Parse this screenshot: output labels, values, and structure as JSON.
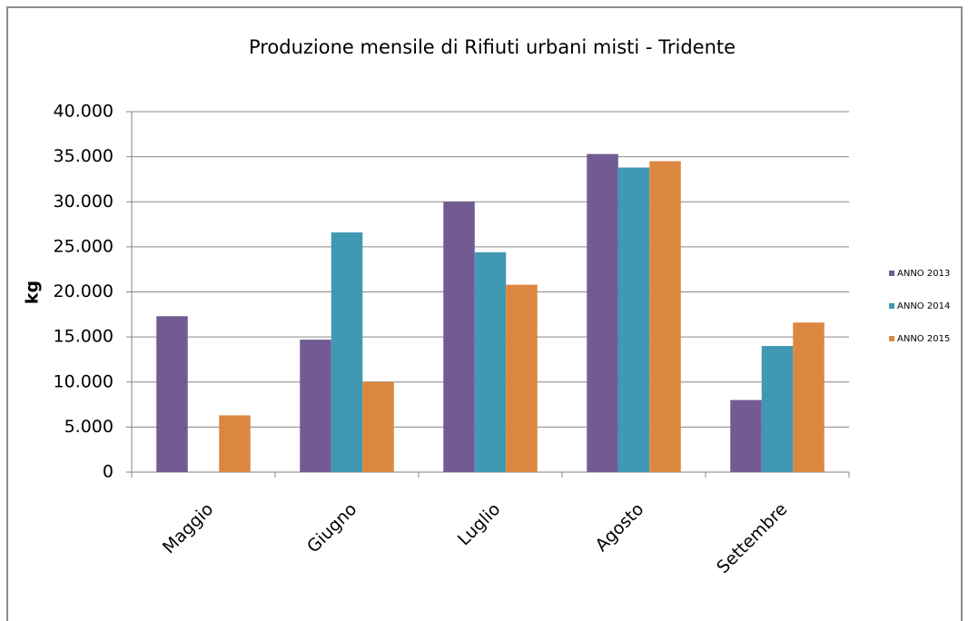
{
  "chart_data": {
    "type": "bar",
    "title": "Produzione mensile di Rifiuti urbani misti - Tridente",
    "y_label": "kg",
    "categories": [
      "Maggio",
      "Giugno",
      "Luglio",
      "Agosto",
      "Settembre"
    ],
    "series": [
      {
        "name": "ANNO 2013",
        "color": "#725b92",
        "values": [
          17300,
          14700,
          30000,
          35300,
          8000
        ]
      },
      {
        "name": "ANNO 2014",
        "color": "#4198b2",
        "values": [
          null,
          26600,
          24400,
          33800,
          14000
        ]
      },
      {
        "name": "ANNO 2015",
        "color": "#dc8740",
        "values": [
          6300,
          10000,
          20800,
          34500,
          16600
        ]
      }
    ],
    "ylim": [
      0,
      40000
    ],
    "yticks": [
      0,
      {
        "value": 5000,
        "label": "5.000"
      },
      {
        "value": 10000,
        "label": "10.000"
      },
      {
        "value": 15000,
        "label": "15.000"
      },
      {
        "value": 20000,
        "label": "20.000"
      },
      {
        "value": 25000,
        "label": "25.000"
      },
      {
        "value": 30000,
        "label": "30.000"
      },
      {
        "value": 35000,
        "label": "35.000"
      },
      {
        "value": 40000,
        "label": "40.000"
      }
    ],
    "grid": true,
    "legend": "right"
  }
}
